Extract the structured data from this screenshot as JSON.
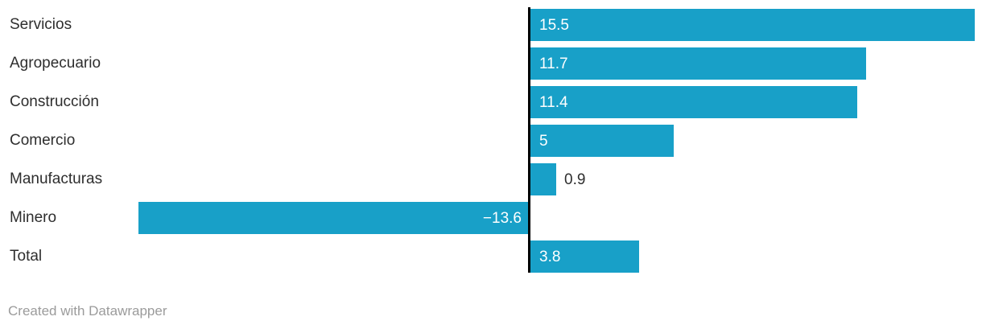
{
  "chart_data": {
    "type": "bar",
    "orientation": "horizontal",
    "title": "",
    "xlabel": "",
    "ylabel": "",
    "categories": [
      "Servicios",
      "Agropecuario",
      "Construcción",
      "Comercio",
      "Manufacturas",
      "Minero",
      "Total"
    ],
    "values": [
      15.5,
      11.7,
      11.4,
      5,
      0.9,
      -13.6,
      3.8
    ],
    "value_labels": [
      "15.5",
      "11.7",
      "11.4",
      "5",
      "0.9",
      "−13.6",
      "3.8"
    ],
    "xlim": [
      -13.6,
      15.5
    ],
    "grid": "off",
    "legend": "none",
    "bar_color": "#18a0c8",
    "baseline_color": "#000000",
    "label_color": "#2e2e2e",
    "inside_value_color": "#ffffff"
  },
  "footer": {
    "credit": "Created with Datawrapper"
  }
}
